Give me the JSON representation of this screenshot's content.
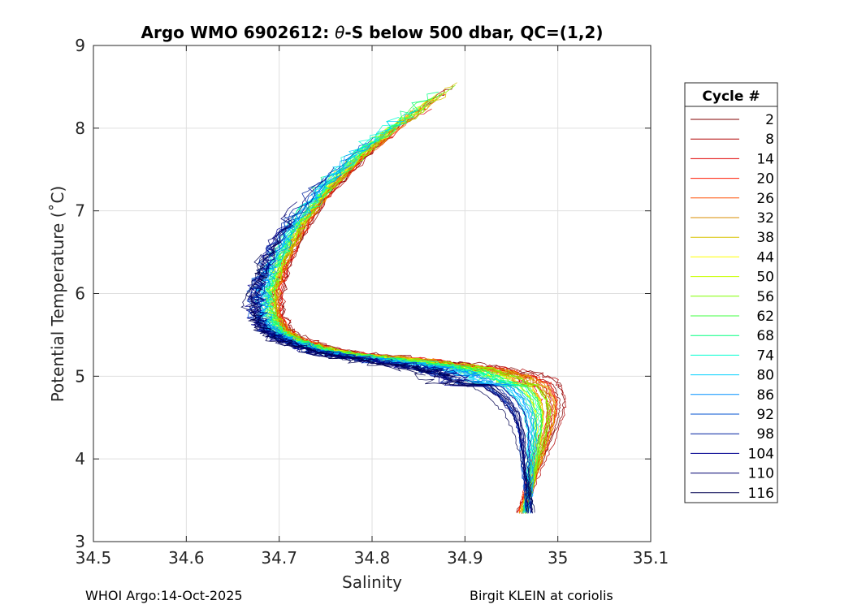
{
  "chart_data": {
    "type": "line",
    "title_prefix": "Argo WMO 6902612: ",
    "title_theta": "θ",
    "title_suffix": "-S below 500 dbar,  QC=(1,2)",
    "xlabel": "Salinity",
    "ylabel": "Potential Temperature (˚C)",
    "xlim": [
      34.5,
      35.1
    ],
    "ylim": [
      3,
      9
    ],
    "xticks": [
      34.5,
      34.6,
      34.7,
      34.8,
      34.9,
      35,
      35.1
    ],
    "xtick_labels": [
      "34.5",
      "34.6",
      "34.7",
      "34.8",
      "34.9",
      "35",
      "35.1"
    ],
    "yticks": [
      3,
      4,
      5,
      6,
      7,
      8,
      9
    ],
    "ytick_labels": [
      "3",
      "4",
      "5",
      "6",
      "7",
      "8",
      "9"
    ],
    "grid": true,
    "legend_title": "Cycle #",
    "legend_position": "outside-right",
    "series": [
      {
        "name": "2",
        "color": "#800000"
      },
      {
        "name": "8",
        "color": "#b00000"
      },
      {
        "name": "14",
        "color": "#e00000"
      },
      {
        "name": "20",
        "color": "#ff1a00"
      },
      {
        "name": "26",
        "color": "#ff4d00"
      },
      {
        "name": "32",
        "color": "#d98c00"
      },
      {
        "name": "38",
        "color": "#d9c400"
      },
      {
        "name": "44",
        "color": "#ffff00"
      },
      {
        "name": "50",
        "color": "#c8ff00"
      },
      {
        "name": "56",
        "color": "#80ff00"
      },
      {
        "name": "62",
        "color": "#40ff40"
      },
      {
        "name": "68",
        "color": "#00ff80"
      },
      {
        "name": "74",
        "color": "#00ffd0"
      },
      {
        "name": "80",
        "color": "#00d0ff"
      },
      {
        "name": "86",
        "color": "#0090ff"
      },
      {
        "name": "92",
        "color": "#0050d0"
      },
      {
        "name": "98",
        "color": "#0020a0"
      },
      {
        "name": "104",
        "color": "#000090"
      },
      {
        "name": "110",
        "color": "#000070"
      },
      {
        "name": "116",
        "color": "#000050"
      }
    ],
    "profile_shape": {
      "salinity": [
        34.965,
        34.973,
        34.98,
        34.988,
        34.995,
        34.999,
        34.998,
        34.99,
        34.97,
        34.94,
        34.9,
        34.85,
        34.8,
        34.76,
        34.73,
        34.71,
        34.7,
        34.7,
        34.71,
        34.73,
        34.76,
        34.8,
        34.84,
        34.87,
        34.9
      ],
      "theta": [
        3.35,
        3.6,
        3.85,
        4.1,
        4.35,
        4.55,
        4.72,
        4.88,
        5.0,
        5.08,
        5.14,
        5.2,
        5.25,
        5.32,
        5.42,
        5.55,
        5.75,
        6.05,
        6.4,
        6.85,
        7.3,
        7.75,
        8.1,
        8.35,
        8.6
      ]
    }
  },
  "footer": {
    "left": "WHOI Argo:14-Oct-2025",
    "right": "Birgit KLEIN at coriolis"
  }
}
